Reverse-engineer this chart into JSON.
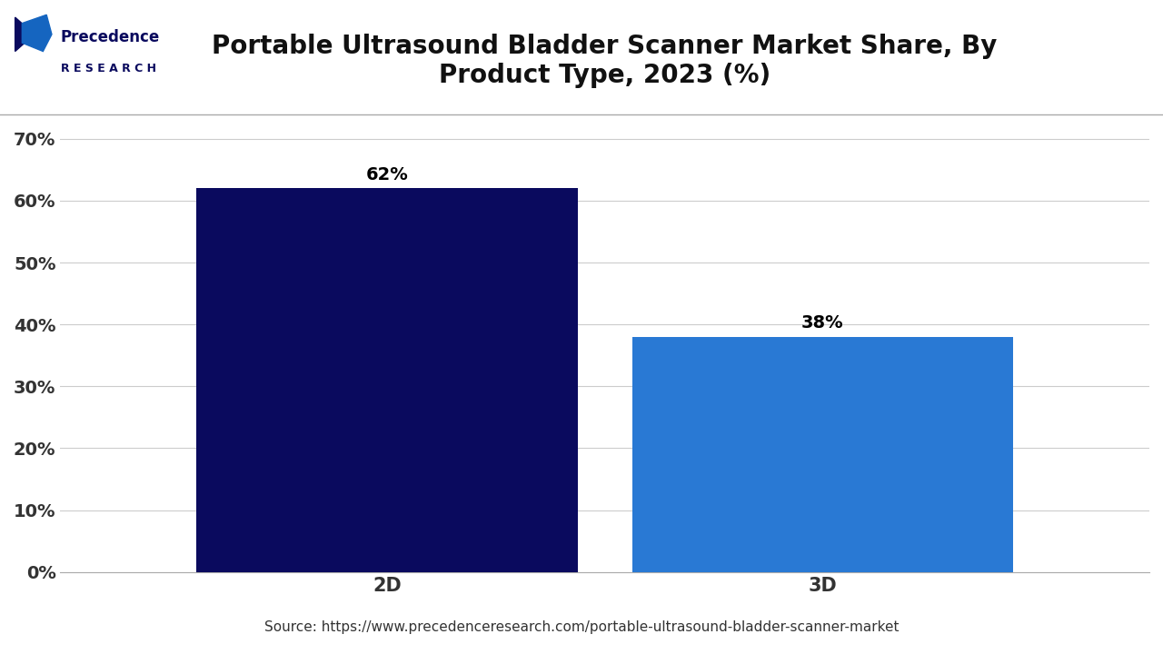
{
  "title": "Portable Ultrasound Bladder Scanner Market Share, By\nProduct Type, 2023 (%)",
  "categories": [
    "2D",
    "3D"
  ],
  "values": [
    62,
    38
  ],
  "bar_colors": [
    "#0a0a5e",
    "#2979d4"
  ],
  "value_labels": [
    "62%",
    "38%"
  ],
  "yticks": [
    0,
    10,
    20,
    30,
    40,
    50,
    60,
    70
  ],
  "ytick_labels": [
    "0%",
    "10%",
    "20%",
    "30%",
    "40%",
    "50%",
    "60%",
    "70%"
  ],
  "ylim": [
    0,
    75
  ],
  "source_text": "Source: https://www.precedenceresearch.com/portable-ultrasound-bladder-scanner-market",
  "background_color": "#ffffff",
  "grid_color": "#cccccc",
  "title_fontsize": 20,
  "tick_fontsize": 14,
  "label_fontsize": 15,
  "value_fontsize": 14,
  "source_fontsize": 11,
  "bar_width": 0.35,
  "logo_color1": "#0a0a5e",
  "logo_color2": "#1565c0"
}
